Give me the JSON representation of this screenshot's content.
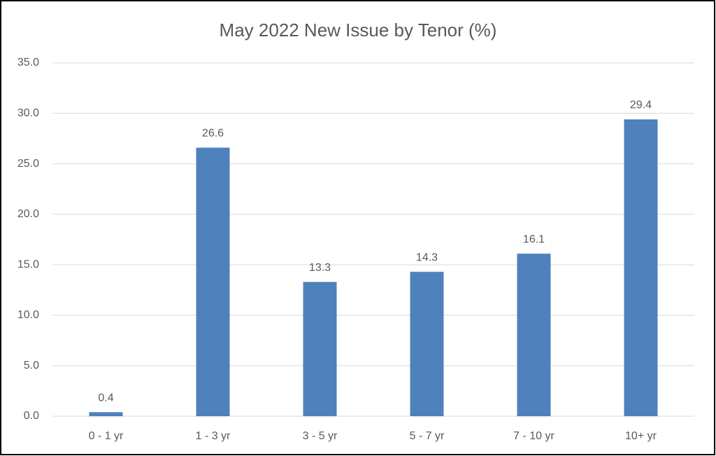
{
  "chart_data": {
    "type": "bar",
    "title": "May 2022 New Issue by Tenor (%)",
    "categories": [
      "0 - 1 yr",
      "1 - 3 yr",
      "3 - 5 yr",
      "5 - 7 yr",
      "7 - 10 yr",
      "10+ yr"
    ],
    "values": [
      0.4,
      26.6,
      13.3,
      14.3,
      16.1,
      29.4
    ],
    "color": "#4f81bd",
    "ylim": [
      0,
      35
    ],
    "yticks": [
      {
        "value": 0,
        "label": "0.0"
      },
      {
        "value": 5,
        "label": "5.0"
      },
      {
        "value": 10,
        "label": "10.0"
      },
      {
        "value": 15,
        "label": "15.0"
      },
      {
        "value": 20,
        "label": "20.0"
      },
      {
        "value": 25,
        "label": "25.0"
      },
      {
        "value": 30,
        "label": "30.0"
      },
      {
        "value": 35,
        "label": "35.0"
      }
    ],
    "grid": true
  }
}
